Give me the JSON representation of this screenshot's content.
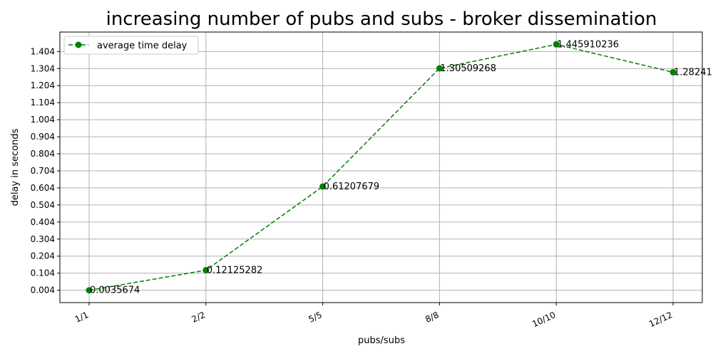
{
  "chart_data": {
    "type": "line",
    "title": "increasing number of pubs and subs - broker dissemination",
    "xlabel": "pubs/subs",
    "ylabel": "delay in seconds",
    "categories": [
      "1/1",
      "2/2",
      "5/5",
      "8/8",
      "10/10",
      "12/12"
    ],
    "series": [
      {
        "name": "average time delay",
        "values": [
          0.0035674,
          0.12125282,
          0.61207679,
          1.30509268,
          1.445910236,
          1.28241
        ],
        "labels": [
          "0.0035674",
          "0.12125282",
          "0.61207679",
          "1.30509268",
          "1.445910236",
          "1.28241"
        ],
        "color": "#008000",
        "line_style": "dashed",
        "marker": "circle"
      }
    ],
    "yticks": [
      "0.004",
      "0.104",
      "0.204",
      "0.304",
      "0.404",
      "0.504",
      "0.604",
      "0.704",
      "0.804",
      "0.904",
      "1.004",
      "1.104",
      "1.204",
      "1.304",
      "1.404"
    ],
    "ylim": [
      -0.0686,
      1.5181
    ],
    "grid": true,
    "legend_position": "top-left",
    "x_tick_rotation": "rotated"
  }
}
